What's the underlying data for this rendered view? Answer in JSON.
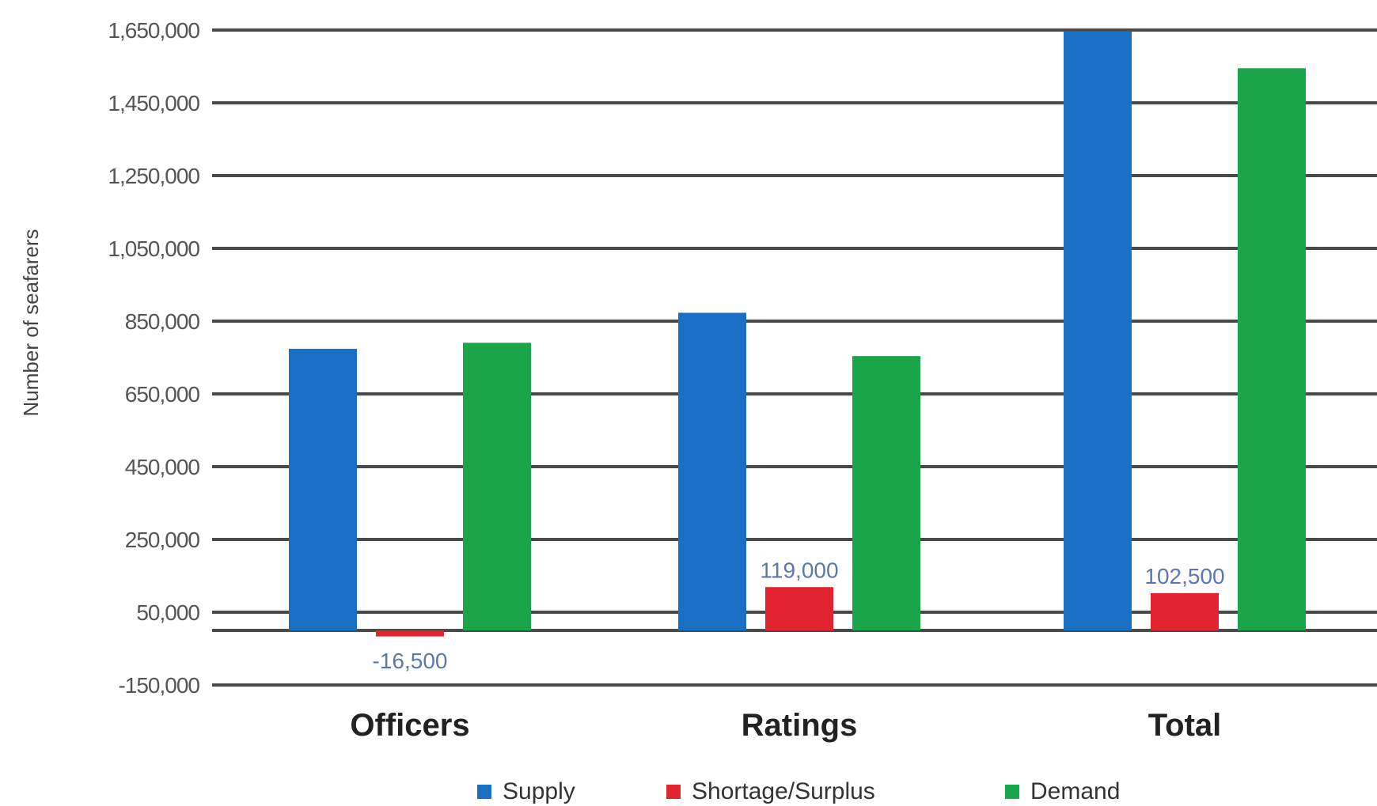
{
  "chart_data": {
    "type": "bar",
    "categories": [
      "Officers",
      "Ratings",
      "Total"
    ],
    "series": [
      {
        "name": "Supply",
        "color": "#1a6fc4",
        "values": [
          774000,
          873000,
          1647000
        ]
      },
      {
        "name": "Shortage/Surplus",
        "color": "#e0232f",
        "values": [
          -16500,
          119000,
          102500
        ]
      },
      {
        "name": "Demand",
        "color": "#1aa54a",
        "values": [
          790500,
          754000,
          1545000
        ]
      }
    ],
    "data_labels": [
      "-16,500",
      "119,000",
      "102,500"
    ],
    "y_ticks": [
      "1,650,000",
      "1,450,000",
      "1,250,000",
      "1,050,000",
      "850,000",
      "650,000",
      "450,000",
      "250,000",
      "50,000",
      "-150,000"
    ],
    "ylim": [
      -150000,
      1650000
    ],
    "ylabel": "Number of seafarers",
    "grid": true,
    "legend": "bottom"
  }
}
